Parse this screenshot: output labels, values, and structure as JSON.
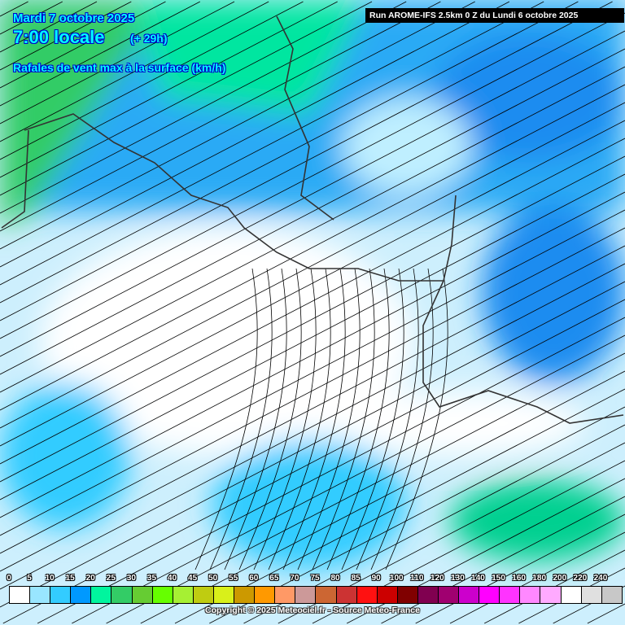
{
  "header": {
    "date": "Mardi 7 octobre 2025",
    "time": "7:00 locale",
    "lead": "(+ 29h)",
    "parameter": "Rafales de vent max à la surface (km/h)",
    "run": "Run AROME-IFS 2.5km 0 Z du Lundi 6 octobre 2025"
  },
  "legend": {
    "labels": [
      "0",
      "5",
      "10",
      "15",
      "20",
      "25",
      "30",
      "35",
      "40",
      "45",
      "50",
      "55",
      "60",
      "65",
      "70",
      "75",
      "80",
      "85",
      "90",
      "100",
      "110",
      "120",
      "130",
      "140",
      "150",
      "160",
      "180",
      "200",
      "220",
      "240"
    ],
    "colors": [
      "#ffffff",
      "#99e6ff",
      "#33ccff",
      "#0099ff",
      "#00f59e",
      "#33cc66",
      "#66cc33",
      "#66ff00",
      "#a6f033",
      "#bfcc11",
      "#d9f01a",
      "#cc9900",
      "#ff9900",
      "#ff9966",
      "#cc9999",
      "#cc6633",
      "#cc3333",
      "#ff1111",
      "#cc0000",
      "#800000",
      "#800050",
      "#a00070",
      "#cc00cc",
      "#ff00ff",
      "#ff33ff",
      "#ff88ff",
      "#ffaaff",
      "#ffffff",
      "#e0e0e0",
      "#c8c8c8"
    ]
  },
  "footer": {
    "copyright": "Copyright © 2025 Meteociel.fr - Source Meteo-France"
  }
}
